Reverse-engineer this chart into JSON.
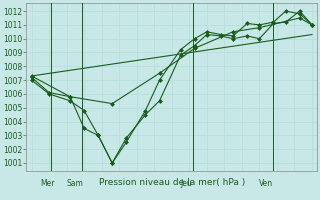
{
  "bg_color": "#c8e8e8",
  "plot_bg_color": "#c8e8e8",
  "grid_color": "#a8d8d8",
  "line_color": "#1a5c1a",
  "vline_color": "#336633",
  "title": "Pression niveau de la mer( hPa )",
  "ylim": [
    1000.4,
    1012.6
  ],
  "yticks": [
    1001,
    1002,
    1003,
    1004,
    1005,
    1006,
    1007,
    1008,
    1009,
    1010,
    1011,
    1012
  ],
  "xlim": [
    -0.3,
    16.3
  ],
  "xtick_labels": [
    "Mer",
    "Sam",
    "Jeu",
    "Ven"
  ],
  "xtick_positions": [
    0.5,
    2.0,
    8.5,
    13.0
  ],
  "vlines_x": [
    1.1,
    2.9,
    9.2,
    13.8
  ],
  "line1_x": [
    0.0,
    1.0,
    2.2,
    3.0,
    3.8,
    4.6,
    5.4,
    6.5,
    7.3,
    8.5,
    9.3,
    10.0,
    10.8,
    11.5,
    12.3,
    13.0,
    13.8,
    14.5,
    15.3,
    16.0
  ],
  "line1_y": [
    1007.0,
    1006.0,
    1005.5,
    1004.8,
    1003.0,
    1001.0,
    1002.8,
    1004.5,
    1005.5,
    1008.8,
    1009.5,
    1010.3,
    1010.2,
    1010.0,
    1010.2,
    1010.0,
    1011.1,
    1011.2,
    1012.0,
    1011.0
  ],
  "line2_x": [
    0.0,
    1.0,
    2.2,
    3.0,
    3.8,
    4.6,
    5.4,
    6.5,
    7.3,
    8.5,
    9.3,
    10.0,
    10.8,
    11.5,
    12.3,
    13.0,
    13.8,
    14.5,
    15.3,
    16.0
  ],
  "line2_y": [
    1007.2,
    1006.1,
    1005.8,
    1003.5,
    1003.0,
    1001.0,
    1002.5,
    1004.8,
    1007.0,
    1009.2,
    1010.0,
    1010.5,
    1010.3,
    1010.2,
    1011.1,
    1011.0,
    1011.2,
    1012.0,
    1011.8,
    1011.0
  ],
  "line3_x": [
    0.0,
    2.2,
    4.6,
    7.3,
    9.3,
    11.5,
    13.0,
    15.3,
    16.0
  ],
  "line3_y": [
    1007.3,
    1005.8,
    1005.3,
    1007.5,
    1009.3,
    1010.5,
    1010.8,
    1011.5,
    1011.0
  ],
  "line4_x": [
    0.0,
    16.0
  ],
  "line4_y": [
    1007.3,
    1010.3
  ]
}
